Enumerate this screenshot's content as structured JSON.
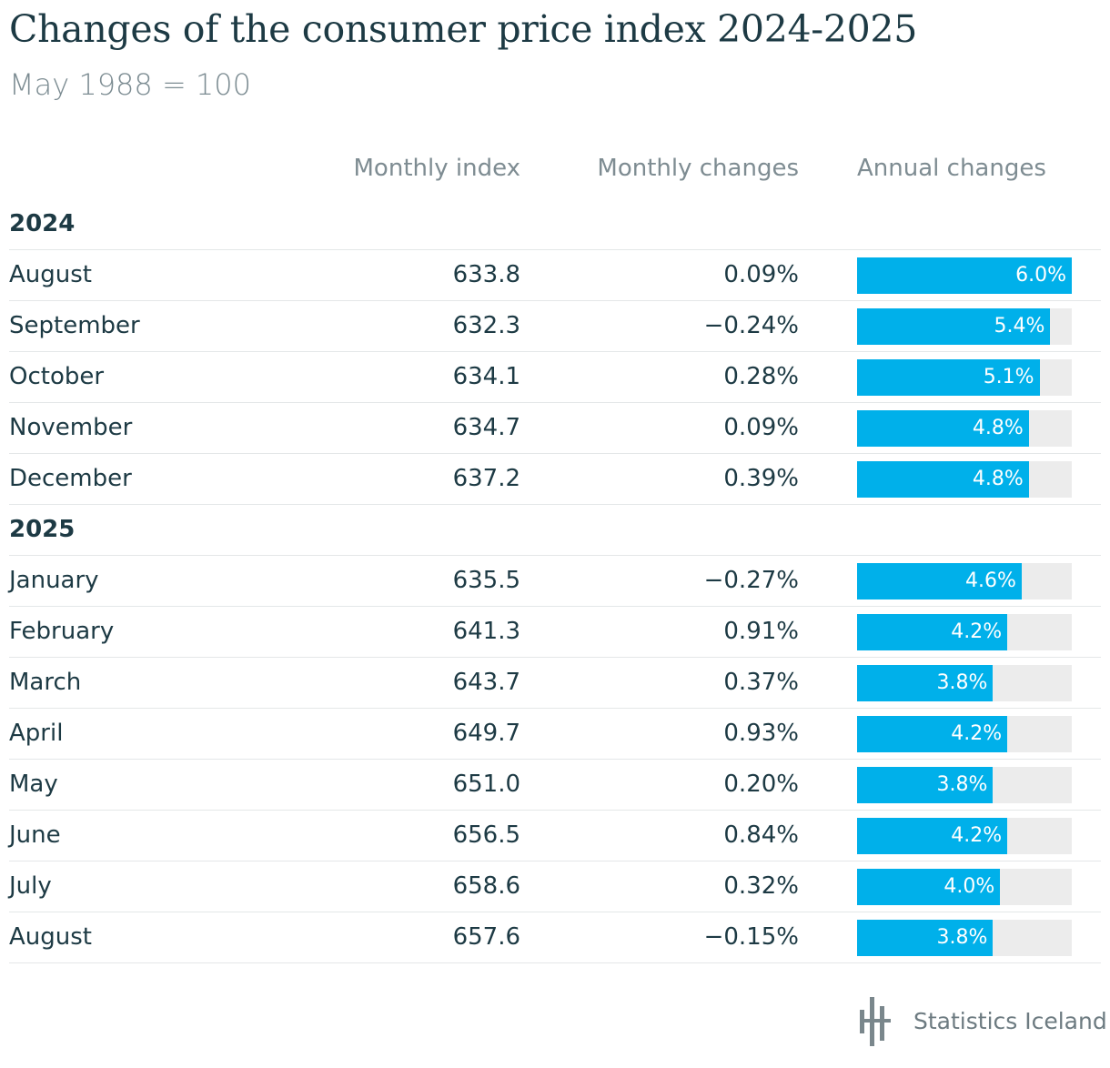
{
  "title": "Changes of the consumer price index 2024-2025",
  "subtitle": "May 1988 = 100",
  "columns": {
    "index": "Monthly index",
    "monthly": "Monthly changes",
    "annual": "Annual changes"
  },
  "brand": "Statistics Iceland",
  "colors": {
    "bar": "#00b0ea",
    "track": "#ececec",
    "text": "#1d3a44",
    "muted": "#7e8c92"
  },
  "chart_data": {
    "type": "table",
    "title": "Changes of the consumer price index 2024-2025",
    "subtitle": "May 1988 = 100",
    "bar_max": 6.0,
    "groups": [
      {
        "year": "2024",
        "rows": [
          {
            "month": "August",
            "index": "633.8",
            "monthly": "0.09%",
            "annual": 6.0,
            "annual_label": "6.0%"
          },
          {
            "month": "September",
            "index": "632.3",
            "monthly": "−0.24%",
            "annual": 5.4,
            "annual_label": "5.4%"
          },
          {
            "month": "October",
            "index": "634.1",
            "monthly": "0.28%",
            "annual": 5.1,
            "annual_label": "5.1%"
          },
          {
            "month": "November",
            "index": "634.7",
            "monthly": "0.09%",
            "annual": 4.8,
            "annual_label": "4.8%"
          },
          {
            "month": "December",
            "index": "637.2",
            "monthly": "0.39%",
            "annual": 4.8,
            "annual_label": "4.8%"
          }
        ]
      },
      {
        "year": "2025",
        "rows": [
          {
            "month": "January",
            "index": "635.5",
            "monthly": "−0.27%",
            "annual": 4.6,
            "annual_label": "4.6%"
          },
          {
            "month": "February",
            "index": "641.3",
            "monthly": "0.91%",
            "annual": 4.2,
            "annual_label": "4.2%"
          },
          {
            "month": "March",
            "index": "643.7",
            "monthly": "0.37%",
            "annual": 3.8,
            "annual_label": "3.8%"
          },
          {
            "month": "April",
            "index": "649.7",
            "monthly": "0.93%",
            "annual": 4.2,
            "annual_label": "4.2%"
          },
          {
            "month": "May",
            "index": "651.0",
            "monthly": "0.20%",
            "annual": 3.8,
            "annual_label": "3.8%"
          },
          {
            "month": "June",
            "index": "656.5",
            "monthly": "0.84%",
            "annual": 4.2,
            "annual_label": "4.2%"
          },
          {
            "month": "July",
            "index": "658.6",
            "monthly": "0.32%",
            "annual": 4.0,
            "annual_label": "4.0%"
          },
          {
            "month": "August",
            "index": "657.6",
            "monthly": "−0.15%",
            "annual": 3.8,
            "annual_label": "3.8%"
          }
        ]
      }
    ]
  }
}
